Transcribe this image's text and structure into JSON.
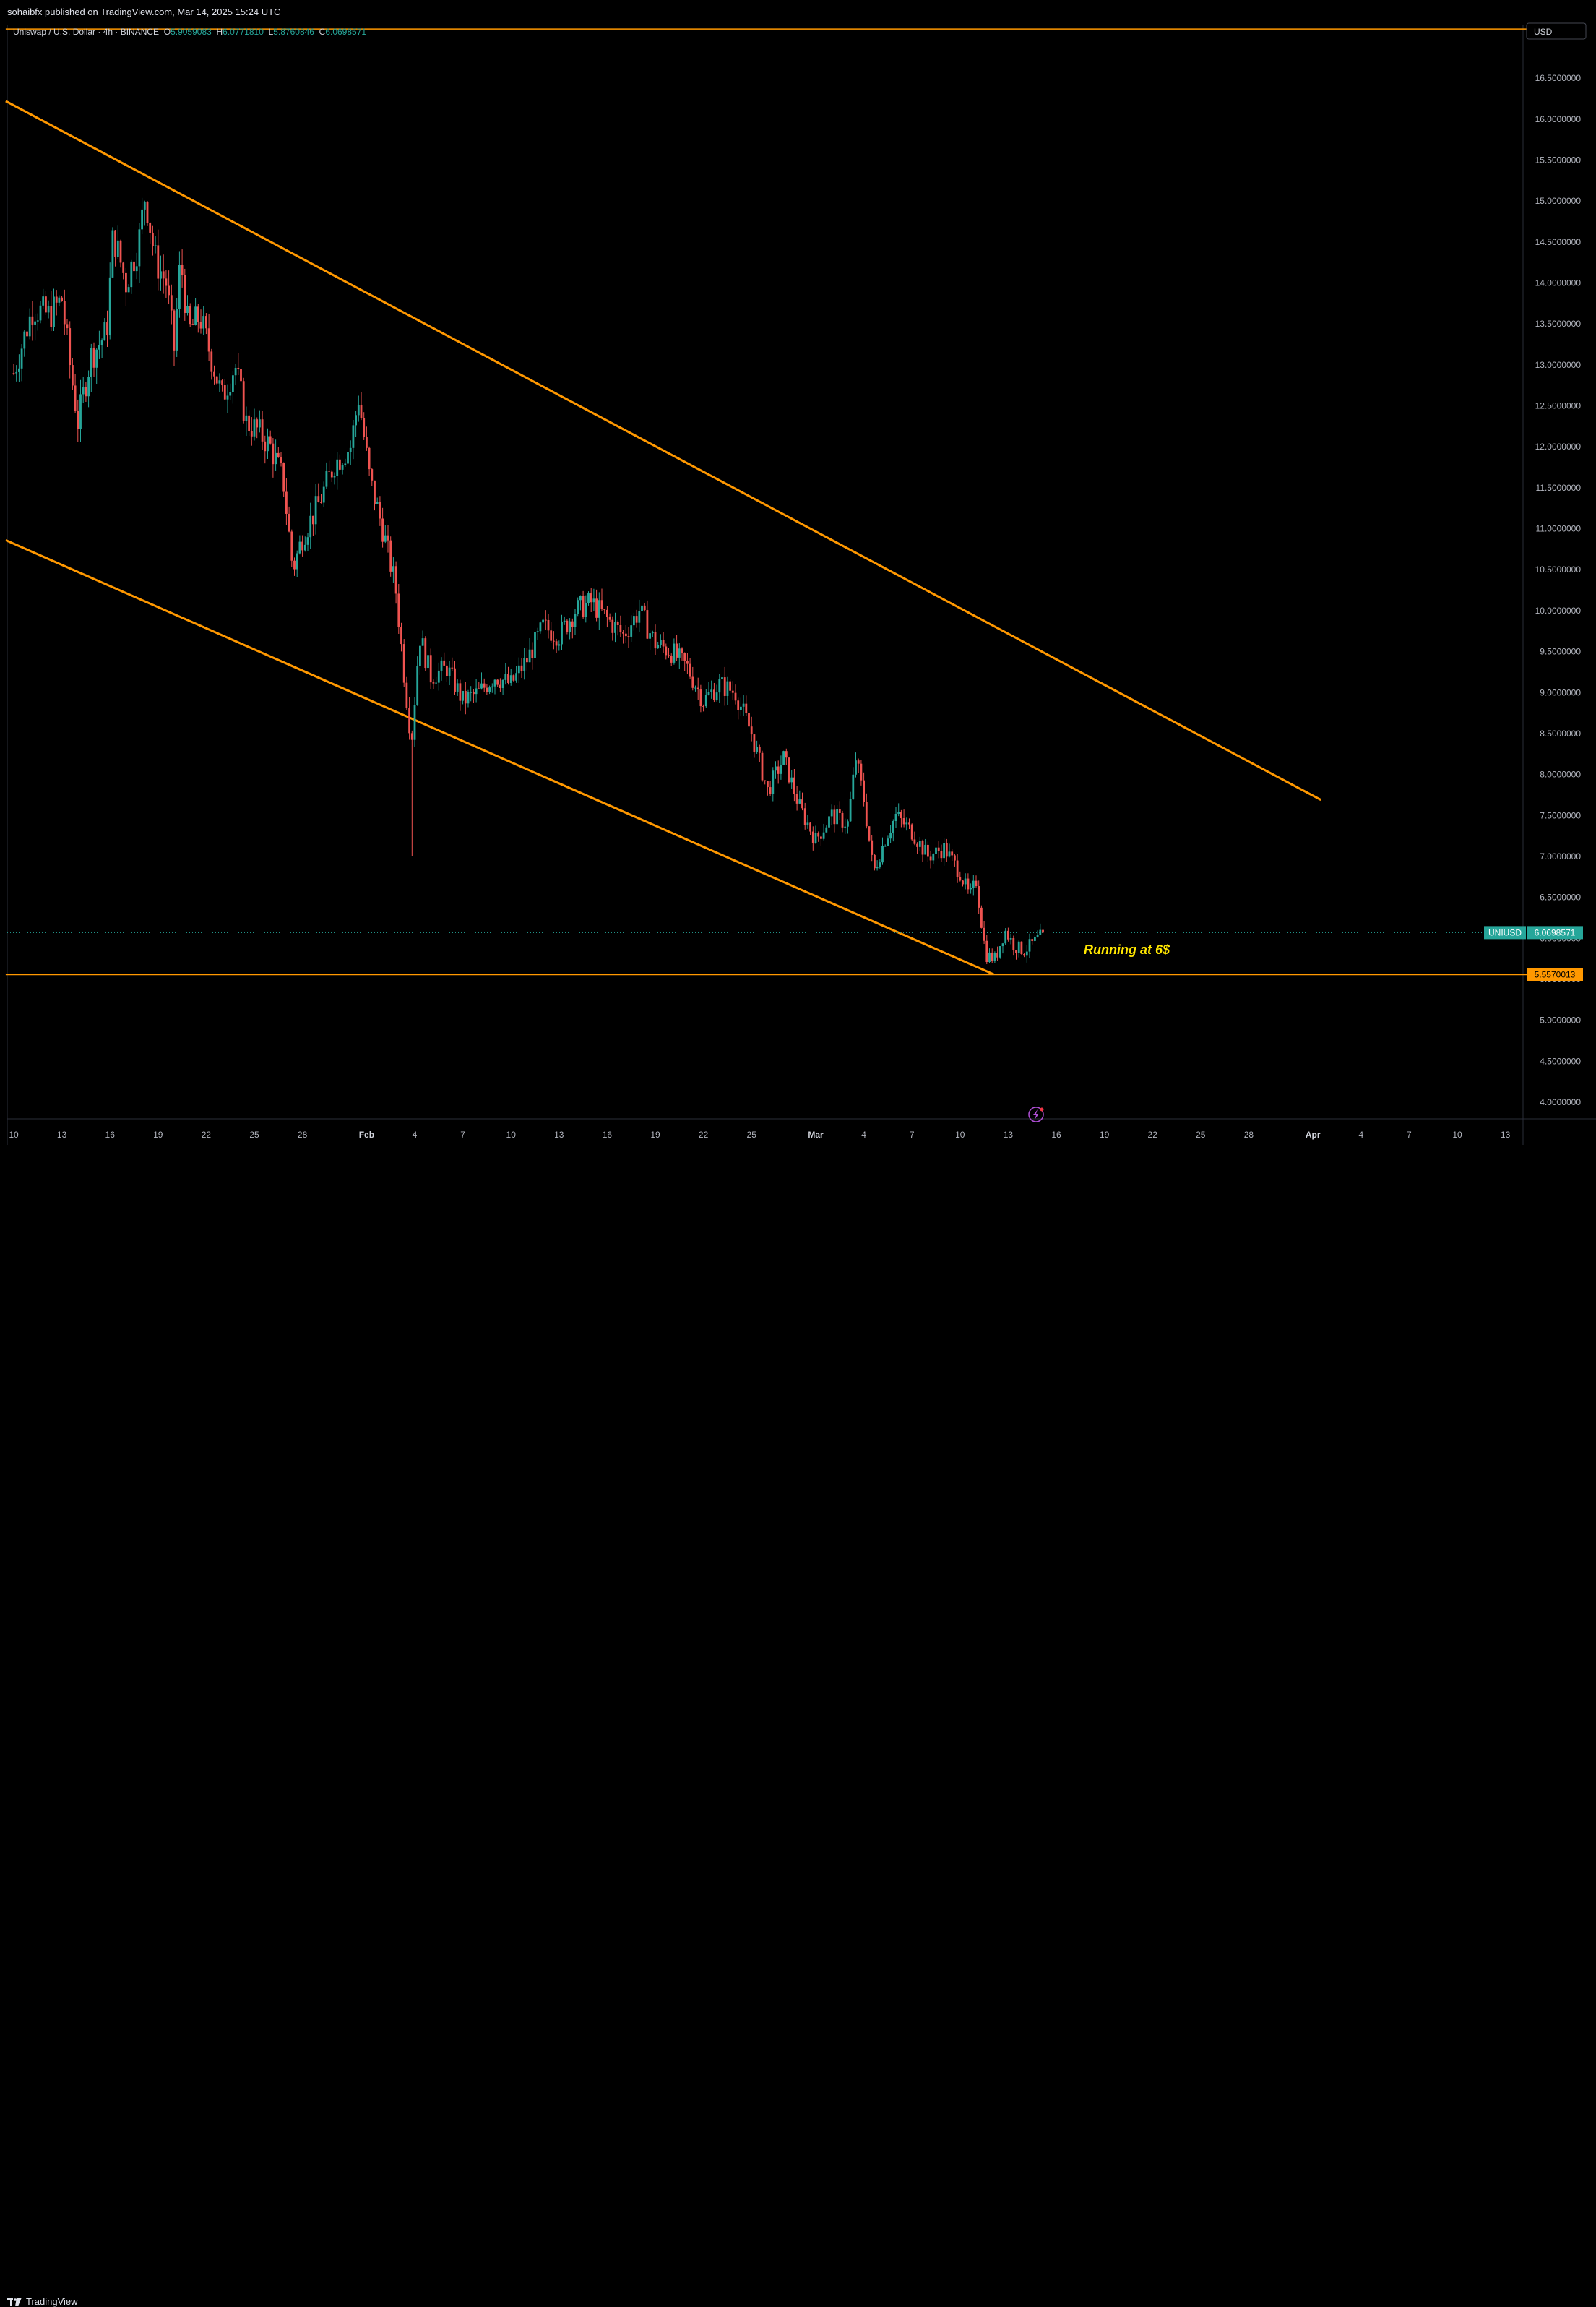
{
  "header": {
    "published": "sohaibfx published on TradingView.com, Mar 14, 2025 15:24 UTC"
  },
  "footer": {
    "brand": "TradingView",
    "logo": "tradingview-logo-icon"
  },
  "legend": {
    "symbol": "Uniswap / U.S. Dollar · 4h · BINANCE",
    "o_label": "O",
    "o": "5.9059083",
    "h_label": "H",
    "h": "6.0771810",
    "l_label": "L",
    "l": "5.8760846",
    "c_label": "C",
    "c": "6.0698571"
  },
  "currency": "USD",
  "price_tag": {
    "symbol": "UNIUSD",
    "value": "6.0698571"
  },
  "level_tag": {
    "value": "5.5570013"
  },
  "annotation": "Running at 6$",
  "colors": {
    "up": "#26a69a",
    "down": "#ef5350",
    "line": "#ff9800",
    "annotation": "#ffe600",
    "axis_text": "#b2b5be",
    "background": "#000000"
  },
  "chart_data": {
    "type": "candlestick",
    "timeframe": "4h",
    "ylim": [
      3.8,
      17.2
    ],
    "y_ticks": [
      "16.5000000",
      "16.0000000",
      "15.5000000",
      "15.0000000",
      "14.5000000",
      "14.0000000",
      "13.5000000",
      "13.0000000",
      "12.5000000",
      "12.0000000",
      "11.5000000",
      "11.0000000",
      "10.5000000",
      "10.0000000",
      "9.5000000",
      "9.0000000",
      "8.5000000",
      "8.0000000",
      "7.5000000",
      "7.0000000",
      "6.5000000",
      "6.0000000",
      "5.5000000",
      "5.0000000",
      "4.5000000",
      "4.0000000"
    ],
    "x_ticks": [
      "10",
      "13",
      "16",
      "19",
      "22",
      "25",
      "28",
      "Feb",
      "4",
      "7",
      "10",
      "13",
      "16",
      "19",
      "22",
      "25",
      "Mar",
      "4",
      "7",
      "10",
      "13",
      "16",
      "19",
      "22",
      "25",
      "28",
      "Apr",
      "4",
      "7",
      "10",
      "13"
    ],
    "x_tick_days": [
      0,
      3,
      6,
      9,
      12,
      15,
      18,
      22,
      25,
      28,
      31,
      34,
      37,
      40,
      43,
      46,
      50,
      53,
      56,
      59,
      62,
      65,
      68,
      71,
      74,
      77,
      81,
      84,
      87,
      90,
      93
    ],
    "price_path": [
      [
        0,
        12.9
      ],
      [
        1.2,
        13.7
      ],
      [
        2.2,
        13.6
      ],
      [
        3.0,
        13.8
      ],
      [
        3.5,
        13.0
      ],
      [
        4.0,
        12.3
      ],
      [
        4.8,
        13.1
      ],
      [
        5.8,
        13.4
      ],
      [
        6.2,
        14.6
      ],
      [
        7.0,
        14.0
      ],
      [
        7.8,
        14.5
      ],
      [
        8.2,
        15.1
      ],
      [
        8.8,
        14.3
      ],
      [
        9.5,
        14.0
      ],
      [
        10.0,
        13.2
      ],
      [
        10.4,
        14.3
      ],
      [
        10.9,
        13.4
      ],
      [
        11.6,
        13.6
      ],
      [
        12.3,
        13.1
      ],
      [
        13.0,
        12.6
      ],
      [
        13.8,
        13.0
      ],
      [
        14.5,
        12.3
      ],
      [
        15.2,
        12.2
      ],
      [
        16.0,
        12.0
      ],
      [
        16.8,
        11.6
      ],
      [
        17.4,
        10.5
      ],
      [
        18.0,
        10.9
      ],
      [
        19.0,
        11.3
      ],
      [
        20.0,
        11.8
      ],
      [
        21.0,
        12.0
      ],
      [
        21.5,
        12.6
      ],
      [
        22.2,
        11.6
      ],
      [
        23.0,
        11.0
      ],
      [
        23.8,
        10.3
      ],
      [
        24.4,
        9.1
      ],
      [
        24.8,
        8.4
      ],
      [
        25.3,
        9.7
      ],
      [
        26.0,
        9.2
      ],
      [
        27.0,
        9.3
      ],
      [
        28.0,
        8.9
      ],
      [
        29.0,
        9.0
      ],
      [
        30.0,
        9.2
      ],
      [
        31.0,
        9.1
      ],
      [
        32.0,
        9.4
      ],
      [
        33.0,
        9.8
      ],
      [
        34.0,
        9.7
      ],
      [
        35.0,
        10.0
      ],
      [
        36.0,
        10.1
      ],
      [
        37.0,
        9.9
      ],
      [
        38.0,
        9.7
      ],
      [
        39.0,
        10.0
      ],
      [
        40.0,
        9.6
      ],
      [
        41.0,
        9.5
      ],
      [
        42.0,
        9.3
      ],
      [
        43.0,
        8.9
      ],
      [
        44.0,
        9.1
      ],
      [
        45.0,
        9.0
      ],
      [
        46.0,
        8.5
      ],
      [
        47.0,
        7.8
      ],
      [
        48.0,
        8.2
      ],
      [
        49.0,
        7.6
      ],
      [
        50.0,
        7.2
      ],
      [
        51.0,
        7.5
      ],
      [
        52.0,
        7.4
      ],
      [
        52.5,
        8.2
      ],
      [
        53.0,
        7.7
      ],
      [
        53.6,
        6.8
      ],
      [
        54.3,
        7.2
      ],
      [
        55.0,
        7.5
      ],
      [
        56.0,
        7.3
      ],
      [
        57.0,
        7.0
      ],
      [
        58.0,
        7.1
      ],
      [
        59.0,
        6.8
      ],
      [
        59.6,
        6.5
      ],
      [
        60.0,
        6.7
      ],
      [
        60.6,
        5.8
      ],
      [
        61.2,
        5.75
      ],
      [
        61.8,
        6.1
      ],
      [
        62.4,
        5.9
      ],
      [
        63.0,
        5.85
      ],
      [
        63.6,
        5.95
      ],
      [
        64.3,
        6.07
      ]
    ],
    "spike_low": {
      "day": 24.8,
      "low": 7.0
    },
    "lines": [
      {
        "name": "upper-channel",
        "from": [
          -0.5,
          16.22
        ],
        "to": [
          81.5,
          7.69
        ]
      },
      {
        "name": "lower-channel",
        "from": [
          -0.5,
          10.86
        ],
        "to": [
          61.1,
          5.56
        ]
      },
      {
        "name": "support",
        "from": [
          -0.5,
          5.557
        ],
        "to": [
          95,
          5.557
        ]
      },
      {
        "name": "top-line",
        "from": [
          -0.5,
          17.1
        ],
        "to": [
          95,
          17.1
        ]
      }
    ],
    "last_price": 6.0698571,
    "support_level": 5.5570013
  }
}
